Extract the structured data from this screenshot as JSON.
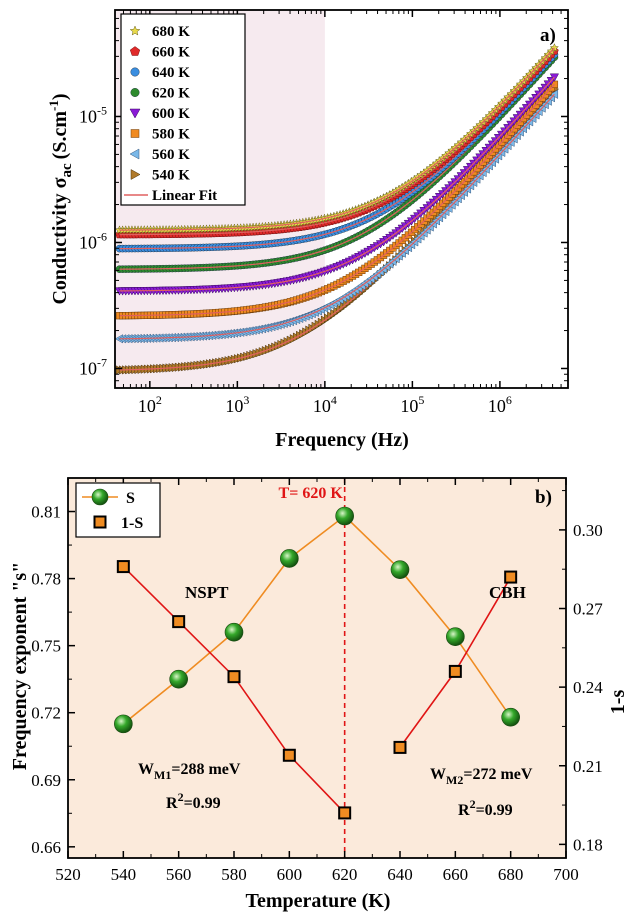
{
  "chart_data": [
    {
      "type": "line",
      "panel_label": "a)",
      "xlabel": "Frequency (Hz)",
      "ylabel_main": "Conductivity σ",
      "ylabel_sub": "ac",
      "ylabel_unit": "(S.cm",
      "ylabel_exp": "-1",
      "ylabel_close": ")",
      "x_scale": "log",
      "y_scale": "log",
      "xlim": [
        40,
        6000000
      ],
      "ylim": [
        7e-08,
        7e-05
      ],
      "xticks": [
        {
          "value": 100,
          "base": "10",
          "exp": "2"
        },
        {
          "value": 1000,
          "base": "10",
          "exp": "3"
        },
        {
          "value": 10000,
          "base": "10",
          "exp": "4"
        },
        {
          "value": 100000,
          "base": "10",
          "exp": "5"
        },
        {
          "value": 1000000,
          "base": "10",
          "exp": "6"
        }
      ],
      "yticks": [
        {
          "value": 1e-07,
          "base": "10",
          "exp": "-7"
        },
        {
          "value": 1e-06,
          "base": "10",
          "exp": "-6"
        },
        {
          "value": 1e-05,
          "base": "10",
          "exp": "-5"
        }
      ],
      "shaded_region": {
        "x_from": 40,
        "x_to": 10000,
        "color": "#f6eaef"
      },
      "legend_position": "top-left",
      "fit_label": "Linear Fit",
      "fit_color": "#e06060",
      "series": [
        {
          "name": "680 K",
          "marker": "star",
          "color": "#e8d94a",
          "sigma_dc": 1.25e-06,
          "sigma_end": 3.5e-05
        },
        {
          "name": "660 K",
          "marker": "pentagon",
          "color": "#e02a2a",
          "sigma_dc": 1.15e-06,
          "sigma_end": 3.3e-05
        },
        {
          "name": "640 K",
          "marker": "sphere",
          "color": "#3a8ee0",
          "sigma_dc": 8.9e-07,
          "sigma_end": 3.1e-05
        },
        {
          "name": "620 K",
          "marker": "circle",
          "color": "#2e8b2e",
          "sigma_dc": 6.1e-07,
          "sigma_end": 2.95e-05
        },
        {
          "name": "600 K",
          "marker": "triangle-down",
          "color": "#8a1ad6",
          "sigma_dc": 4.1e-07,
          "sigma_end": 2.05e-05
        },
        {
          "name": "580 K",
          "marker": "square",
          "color": "#f08a20",
          "sigma_dc": 2.6e-07,
          "sigma_end": 1.8e-05
        },
        {
          "name": "560 K",
          "marker": "triangle-left",
          "color": "#7ab8e8",
          "sigma_dc": 1.7e-07,
          "sigma_end": 1.5e-05
        },
        {
          "name": "540 K",
          "marker": "triangle-right",
          "color": "#b07a2a",
          "sigma_dc": 9.5e-08,
          "sigma_end": 1.65e-05
        }
      ]
    },
    {
      "type": "line",
      "panel_label": "b)",
      "xlabel": "Temperature (K)",
      "ylabel": "Frequency exponent \"s\"",
      "y2label": "1-s",
      "xlim": [
        520,
        700
      ],
      "ylim": [
        0.655,
        0.825
      ],
      "y2lim": [
        0.1748,
        0.3198
      ],
      "xticks": [
        520,
        540,
        560,
        580,
        600,
        620,
        640,
        660,
        680,
        700
      ],
      "yticks": [
        "0.66",
        "0.69",
        "0.72",
        "0.75",
        "0.78",
        "0.81"
      ],
      "y2ticks": [
        "0.18",
        "0.21",
        "0.24",
        "0.27",
        "0.30"
      ],
      "background": "#fbeadb",
      "vline": {
        "x": 620,
        "label": "T= 620 K",
        "color": "#e01515"
      },
      "legend_position": "top-left",
      "series": [
        {
          "name": "S",
          "axis": "left",
          "color": "#ef8c22",
          "marker_color": "#34a82a",
          "x": [
            540,
            560,
            580,
            600,
            620,
            640,
            660,
            680
          ],
          "values": [
            0.715,
            0.735,
            0.756,
            0.789,
            0.808,
            0.784,
            0.754,
            0.718
          ]
        },
        {
          "name": "1-S",
          "axis": "right",
          "color": "#e01515",
          "marker_color": "#ef8c22",
          "x": [
            540,
            560,
            580,
            600,
            620,
            640,
            660,
            680
          ],
          "values": [
            0.286,
            0.265,
            0.244,
            0.214,
            0.192,
            0.217,
            0.246,
            0.282
          ]
        }
      ],
      "annotations": {
        "nspt": "NSPT",
        "cbh": "CBH",
        "wm1_prefix": "W",
        "wm1_sub": "M1",
        "wm1_value": "=288 meV",
        "wm2_prefix": "W",
        "wm2_sub": "M2",
        "wm2_value": "=272 meV",
        "r2_prefix": "R",
        "r2_exp": "2",
        "r2_value_left": "=0.99",
        "r2_value_right": "=0.99"
      }
    }
  ]
}
